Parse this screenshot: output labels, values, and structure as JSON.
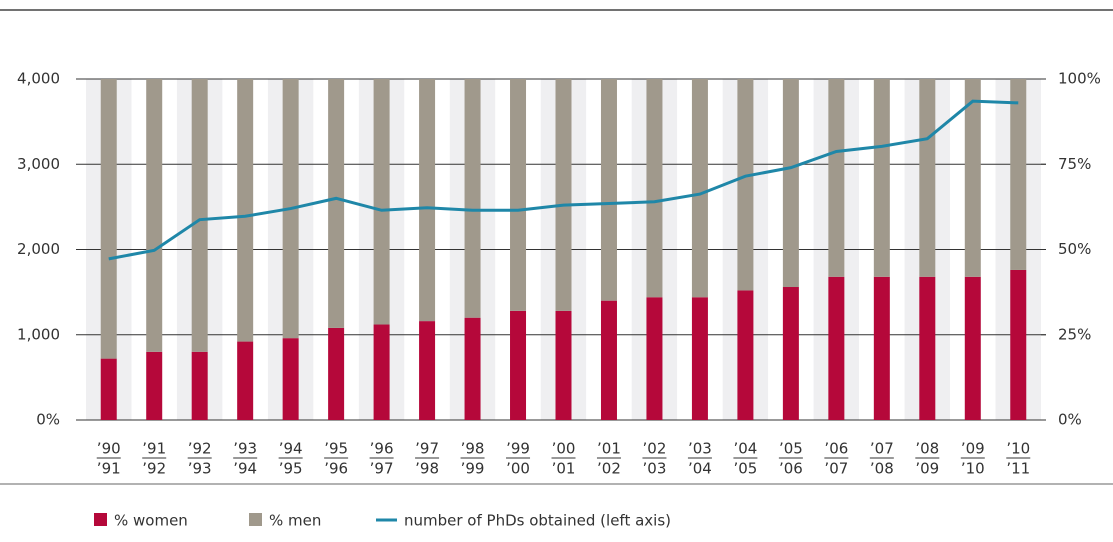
{
  "chart_data": {
    "type": "bar-line",
    "categories": [
      [
        "’90",
        "’91"
      ],
      [
        "’91",
        "’92"
      ],
      [
        "’92",
        "’93"
      ],
      [
        "’93",
        "’94"
      ],
      [
        "’94",
        "’95"
      ],
      [
        "’95",
        "’96"
      ],
      [
        "’96",
        "’97"
      ],
      [
        "’97",
        "’98"
      ],
      [
        "’98",
        "’99"
      ],
      [
        "’99",
        "’00"
      ],
      [
        "’00",
        "’01"
      ],
      [
        "’01",
        "’02"
      ],
      [
        "’02",
        "’03"
      ],
      [
        "’03",
        "’04"
      ],
      [
        "’04",
        "’05"
      ],
      [
        "’05",
        "’06"
      ],
      [
        "’06",
        "’07"
      ],
      [
        "’07",
        "’08"
      ],
      [
        "’08",
        "’09"
      ],
      [
        "’09",
        "’10"
      ],
      [
        "’10",
        "’11"
      ]
    ],
    "series": [
      {
        "name": "% women",
        "type": "bar",
        "axis": "y2",
        "color": "#b5083a",
        "values": [
          18,
          20,
          20,
          23,
          24,
          27,
          28,
          29,
          30,
          32,
          32,
          35,
          36,
          36,
          38,
          39,
          42,
          42,
          42,
          42,
          44
        ]
      },
      {
        "name": "% men",
        "type": "bar",
        "axis": "y2",
        "color": "#a0998c",
        "values": [
          82,
          80,
          80,
          77,
          76,
          73,
          72,
          71,
          70,
          68,
          68,
          65,
          64,
          64,
          62,
          61,
          58,
          58,
          58,
          58,
          56
        ]
      },
      {
        "name": "number of PhDs obtained (left axis)",
        "type": "line",
        "axis": "y",
        "color": "#1f87a8",
        "values": [
          1890,
          1990,
          2350,
          2390,
          2480,
          2600,
          2460,
          2490,
          2460,
          2460,
          2520,
          2540,
          2560,
          2650,
          2860,
          2960,
          3150,
          3210,
          3300,
          3740,
          3720
        ]
      }
    ],
    "ylim": [
      0,
      4000
    ],
    "yticks": [
      {
        "value": 0,
        "label": "0%"
      },
      {
        "value": 1000,
        "label": "1,000"
      },
      {
        "value": 2000,
        "label": "2,000"
      },
      {
        "value": 3000,
        "label": "3,000"
      },
      {
        "value": 4000,
        "label": "4,000"
      }
    ],
    "y2lim": [
      0,
      100
    ],
    "y2ticks": [
      {
        "value": 0,
        "label": "0%"
      },
      {
        "value": 25,
        "label": "25%"
      },
      {
        "value": 50,
        "label": "50%"
      },
      {
        "value": 75,
        "label": "75%"
      },
      {
        "value": 100,
        "label": "100%"
      }
    ],
    "grid": true,
    "legend": "bottom"
  }
}
